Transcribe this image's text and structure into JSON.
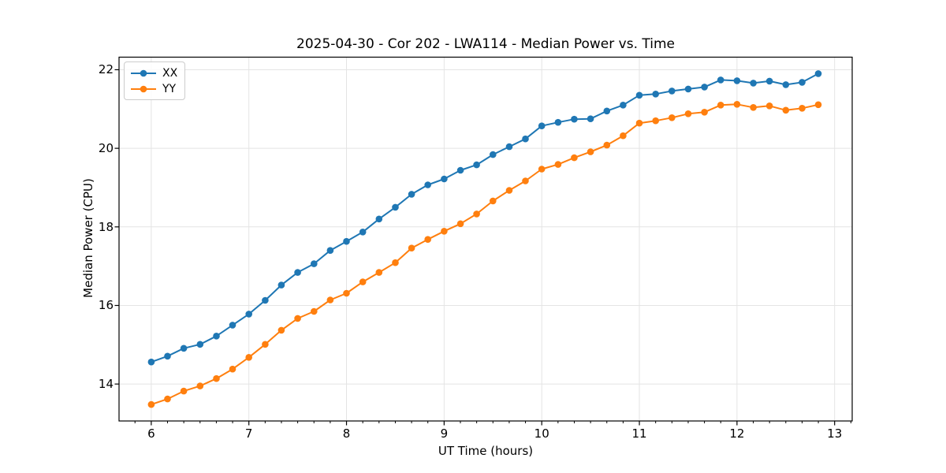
{
  "chart_data": {
    "type": "line",
    "title": "2025-04-30 - Cor 202 - LWA114 - Median Power vs. Time",
    "xlabel": "UT Time (hours)",
    "ylabel": "Median Power (CPU)",
    "xlim": [
      5.67,
      13.18
    ],
    "ylim": [
      13.06,
      22.32
    ],
    "xticks": [
      6,
      7,
      8,
      9,
      10,
      11,
      12,
      13
    ],
    "yticks": [
      14,
      16,
      18,
      20,
      22
    ],
    "x_minor_step_hours": 0.1667,
    "grid": true,
    "legend_position": "upper-left",
    "x": [
      6.0,
      6.167,
      6.333,
      6.5,
      6.667,
      6.833,
      7.0,
      7.167,
      7.333,
      7.5,
      7.667,
      7.833,
      8.0,
      8.167,
      8.333,
      8.5,
      8.667,
      8.833,
      9.0,
      9.167,
      9.333,
      9.5,
      9.667,
      9.833,
      10.0,
      10.167,
      10.333,
      10.5,
      10.667,
      10.833,
      11.0,
      11.167,
      11.333,
      11.5,
      11.667,
      11.833,
      12.0,
      12.167,
      12.333,
      12.5,
      12.667,
      12.833
    ],
    "series": [
      {
        "name": "XX",
        "color": "#1f77b4",
        "values": [
          14.56,
          14.71,
          14.91,
          15.01,
          15.22,
          15.5,
          15.78,
          16.13,
          16.52,
          16.84,
          17.06,
          17.4,
          17.63,
          17.87,
          18.2,
          18.5,
          18.83,
          19.07,
          19.22,
          19.44,
          19.58,
          19.84,
          20.04,
          20.24,
          20.57,
          20.66,
          20.74,
          20.75,
          20.95,
          21.1,
          21.35,
          21.38,
          21.46,
          21.51,
          21.56,
          21.74,
          21.72,
          21.66,
          21.71,
          21.62,
          21.68,
          21.9
        ]
      },
      {
        "name": "YY",
        "color": "#ff7f0e",
        "values": [
          13.48,
          13.62,
          13.82,
          13.95,
          14.14,
          14.38,
          14.68,
          15.01,
          15.37,
          15.67,
          15.85,
          16.14,
          16.31,
          16.6,
          16.84,
          17.09,
          17.46,
          17.68,
          17.89,
          18.08,
          18.33,
          18.66,
          18.93,
          19.17,
          19.47,
          19.59,
          19.76,
          19.91,
          20.08,
          20.32,
          20.64,
          20.7,
          20.78,
          20.88,
          20.92,
          21.1,
          21.12,
          21.04,
          21.08,
          20.97,
          21.02,
          21.11
        ]
      }
    ]
  }
}
